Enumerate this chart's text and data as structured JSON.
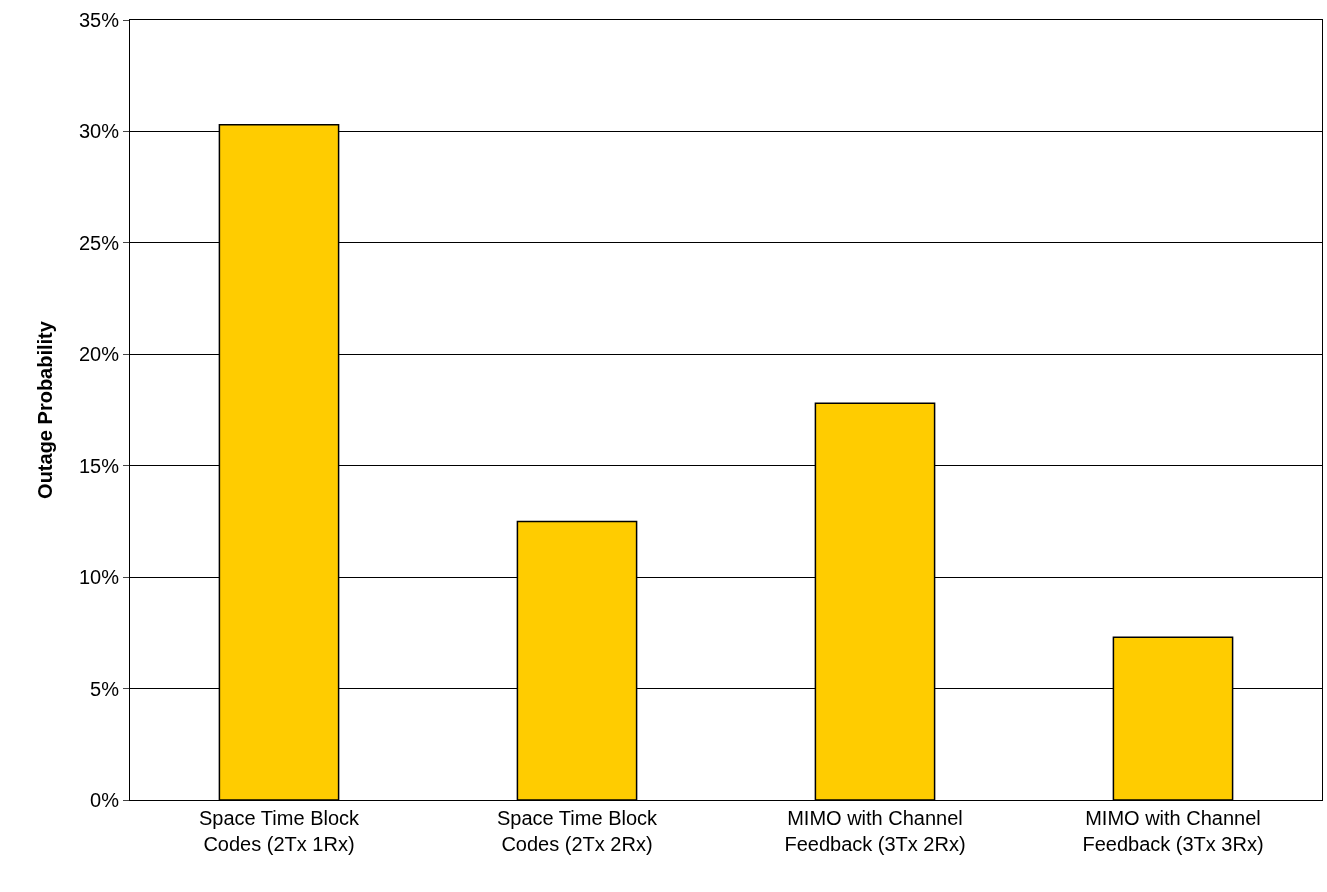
{
  "chart_data": {
    "type": "bar",
    "ylabel": "Outage Probability",
    "categories": [
      "Space Time Block Codes (2Tx 1Rx)",
      "Space Time Block Codes (2Tx 2Rx)",
      "MIMO with Channel Feedback (3Tx 2Rx)",
      "MIMO with Channel Feedback (3Tx 3Rx)"
    ],
    "values": [
      30.3,
      12.5,
      17.8,
      7.3
    ],
    "color": "#ffcc00",
    "ylim": [
      0,
      35
    ],
    "yticks": [
      {
        "value": 0,
        "label": "0%"
      },
      {
        "value": 5,
        "label": "5%"
      },
      {
        "value": 10,
        "label": "10%"
      },
      {
        "value": 15,
        "label": "15%"
      },
      {
        "value": 20,
        "label": "20%"
      },
      {
        "value": 25,
        "label": "25%"
      },
      {
        "value": 30,
        "label": "30%"
      },
      {
        "value": 35,
        "label": "35%"
      }
    ],
    "grid": "y"
  }
}
